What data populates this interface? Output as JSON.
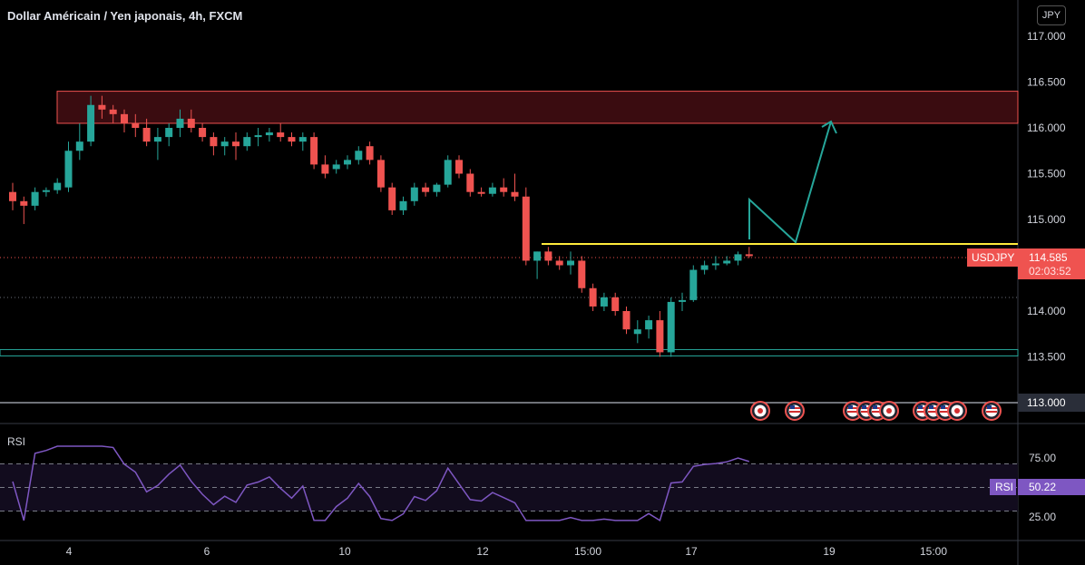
{
  "title": "Dollar Américain / Yen japonais, 4h, FXCM",
  "currency_button": "JPY",
  "price_tag": {
    "symbol": "USDJPY",
    "price": "114.585",
    "countdown": "02:03:52"
  },
  "rsi_tag": {
    "label": "RSI",
    "value": "50.22"
  },
  "rsi_pane_label": "RSI",
  "colors": {
    "up": "#26a69a",
    "down": "#ef5350",
    "resistance_zone": "#3a0c10",
    "resistance_border": "#ef5350",
    "support_line": "#26a69a",
    "neckline": "#ffeb3b",
    "projection": "#26a69a",
    "rsi": "#7e57c2"
  },
  "chart_data": {
    "type": "candlestick",
    "price_axis": {
      "min": 112.7,
      "max": 117.2,
      "ticks": [
        "117.000",
        "116.500",
        "116.000",
        "115.500",
        "115.000",
        "114.500",
        "114.000",
        "113.500",
        "113.000"
      ]
    },
    "time_axis_labels": [
      "4",
      "6",
      "10",
      "12",
      "15:00",
      "17",
      "19",
      "15:00"
    ],
    "candles": [
      [
        115.3,
        115.4,
        115.1,
        115.2
      ],
      [
        115.2,
        115.25,
        114.95,
        115.15
      ],
      [
        115.15,
        115.35,
        115.1,
        115.3
      ],
      [
        115.3,
        115.35,
        115.25,
        115.32
      ],
      [
        115.32,
        115.45,
        115.28,
        115.4
      ],
      [
        115.35,
        115.85,
        115.3,
        115.75
      ],
      [
        115.75,
        116.05,
        115.65,
        115.85
      ],
      [
        115.85,
        116.35,
        115.8,
        116.25
      ],
      [
        116.25,
        116.35,
        116.1,
        116.2
      ],
      [
        116.2,
        116.25,
        116.05,
        116.15
      ],
      [
        116.15,
        116.2,
        115.95,
        116.05
      ],
      [
        116.05,
        116.15,
        115.9,
        116.0
      ],
      [
        116.0,
        116.1,
        115.8,
        115.85
      ],
      [
        115.85,
        116.0,
        115.65,
        115.9
      ],
      [
        115.9,
        116.05,
        115.8,
        116.0
      ],
      [
        116.0,
        116.2,
        115.9,
        116.1
      ],
      [
        116.1,
        116.2,
        115.95,
        116.0
      ],
      [
        116.0,
        116.05,
        115.85,
        115.9
      ],
      [
        115.9,
        115.95,
        115.7,
        115.8
      ],
      [
        115.8,
        115.9,
        115.7,
        115.85
      ],
      [
        115.85,
        115.95,
        115.65,
        115.8
      ],
      [
        115.8,
        115.95,
        115.75,
        115.9
      ],
      [
        115.9,
        116.0,
        115.8,
        115.92
      ],
      [
        115.92,
        116.0,
        115.85,
        115.95
      ],
      [
        115.95,
        116.05,
        115.85,
        115.9
      ],
      [
        115.9,
        115.95,
        115.8,
        115.85
      ],
      [
        115.85,
        115.95,
        115.75,
        115.9
      ],
      [
        115.9,
        115.95,
        115.55,
        115.6
      ],
      [
        115.6,
        115.7,
        115.45,
        115.5
      ],
      [
        115.55,
        115.65,
        115.5,
        115.6
      ],
      [
        115.6,
        115.7,
        115.55,
        115.65
      ],
      [
        115.65,
        115.8,
        115.6,
        115.75
      ],
      [
        115.8,
        115.85,
        115.6,
        115.65
      ],
      [
        115.65,
        115.7,
        115.3,
        115.35
      ],
      [
        115.35,
        115.4,
        115.05,
        115.1
      ],
      [
        115.1,
        115.25,
        115.05,
        115.2
      ],
      [
        115.2,
        115.4,
        115.15,
        115.35
      ],
      [
        115.35,
        115.4,
        115.25,
        115.3
      ],
      [
        115.3,
        115.4,
        115.25,
        115.38
      ],
      [
        115.38,
        115.7,
        115.35,
        115.65
      ],
      [
        115.65,
        115.7,
        115.45,
        115.5
      ],
      [
        115.5,
        115.55,
        115.25,
        115.3
      ],
      [
        115.3,
        115.35,
        115.25,
        115.28
      ],
      [
        115.28,
        115.4,
        115.25,
        115.35
      ],
      [
        115.35,
        115.45,
        115.25,
        115.3
      ],
      [
        115.3,
        115.5,
        115.2,
        115.25
      ],
      [
        115.25,
        115.35,
        114.5,
        114.55
      ],
      [
        114.55,
        114.65,
        114.35,
        114.65
      ],
      [
        114.65,
        114.7,
        114.5,
        114.55
      ],
      [
        114.55,
        114.6,
        114.45,
        114.5
      ],
      [
        114.5,
        114.65,
        114.4,
        114.55
      ],
      [
        114.55,
        114.6,
        114.2,
        114.25
      ],
      [
        114.25,
        114.3,
        114.0,
        114.05
      ],
      [
        114.05,
        114.2,
        114.0,
        114.15
      ],
      [
        114.15,
        114.2,
        113.95,
        114.0
      ],
      [
        114.0,
        114.05,
        113.75,
        113.8
      ],
      [
        113.75,
        113.9,
        113.65,
        113.8
      ],
      [
        113.8,
        113.95,
        113.7,
        113.9
      ],
      [
        113.9,
        114.0,
        113.5,
        113.55
      ],
      [
        113.55,
        114.15,
        113.5,
        114.1
      ],
      [
        114.1,
        114.2,
        114.0,
        114.12
      ],
      [
        114.12,
        114.5,
        114.1,
        114.45
      ],
      [
        114.45,
        114.55,
        114.4,
        114.5
      ],
      [
        114.5,
        114.6,
        114.45,
        114.52
      ],
      [
        114.52,
        114.6,
        114.5,
        114.55
      ],
      [
        114.55,
        114.65,
        114.5,
        114.62
      ],
      [
        114.62,
        114.7,
        114.58,
        114.6
      ]
    ],
    "resistance_zone": [
      116.05,
      116.4
    ],
    "support_zone": [
      113.5,
      113.55
    ],
    "neckline": 114.72,
    "projection_path": [
      [
        114.8,
        114.8
      ],
      [
        115.2,
        115.2
      ]
    ],
    "rsi": {
      "levels": [
        70,
        50,
        30
      ],
      "axis_ticks": [
        "75.00",
        "25.00"
      ]
    }
  }
}
